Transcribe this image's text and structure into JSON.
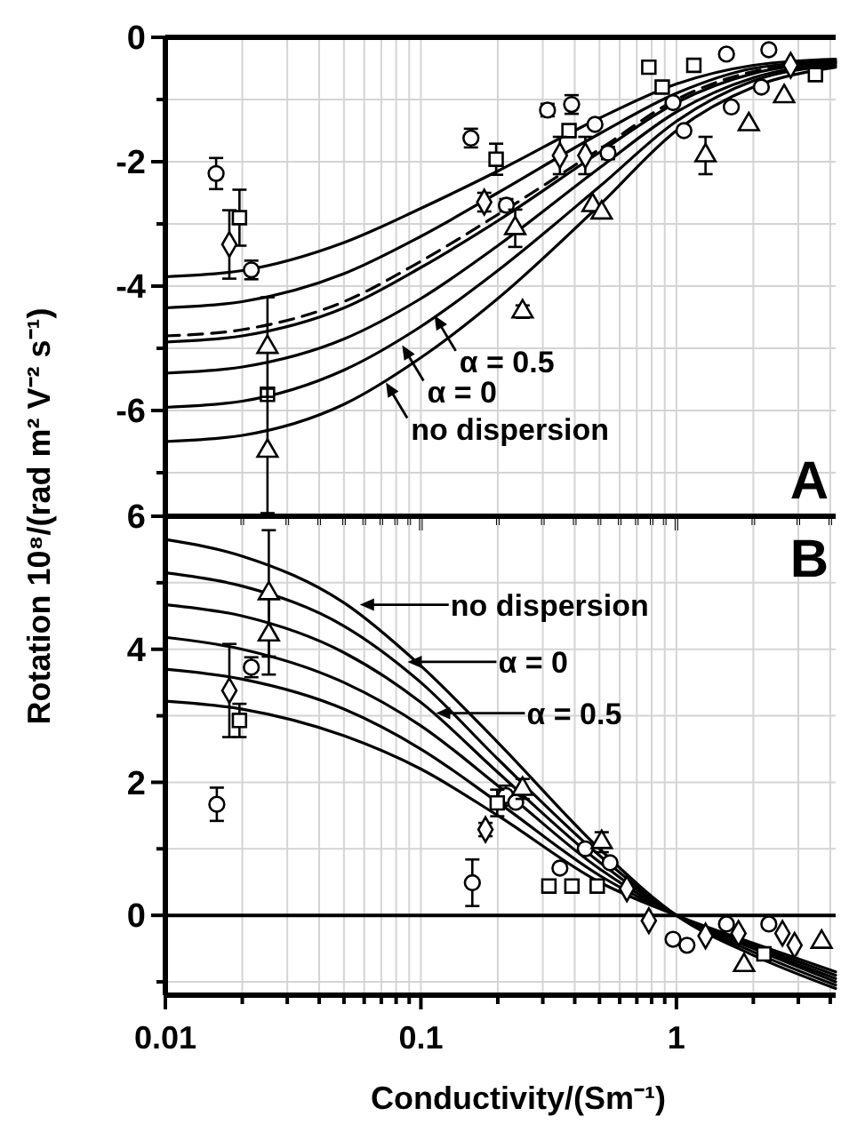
{
  "chart_data": [
    {
      "type": "line",
      "ylabel": "Rotation 10⁸/(rad m² V⁻² s⁻¹)",
      "annotations": [
        "A",
        {
          "text": "α = 0.5",
          "x": 0.113,
          "y": -4.47
        },
        {
          "text": "α = 0",
          "x": 0.0845,
          "y": -4.95
        },
        {
          "text": "no dispersion",
          "x": 0.073,
          "y": -5.55
        }
      ],
      "log": "x",
      "grid": true,
      "tick_labels": "y",
      "xlim": [
        0.01,
        4.2
      ],
      "ylim": [
        -7.7,
        0
      ],
      "xticks": [
        0.01,
        {
          "value": 0.02,
          "label": null
        },
        {
          "value": 0.03,
          "label": null
        },
        {
          "value": 0.04,
          "label": null
        },
        {
          "value": 0.05,
          "label": null
        },
        {
          "value": 0.06,
          "label": null
        },
        {
          "value": 0.07,
          "label": null
        },
        {
          "value": 0.08,
          "label": null
        },
        {
          "value": 0.09,
          "label": null
        },
        0.1,
        {
          "value": 0.2,
          "label": null
        },
        {
          "value": 0.3,
          "label": null
        },
        {
          "value": 0.4,
          "label": null
        },
        {
          "value": 0.5,
          "label": null
        },
        {
          "value": 0.6,
          "label": null
        },
        {
          "value": 0.7,
          "label": null
        },
        {
          "value": 0.8,
          "label": null
        },
        {
          "value": 0.9,
          "label": null
        },
        1,
        {
          "value": 2,
          "label": null
        },
        {
          "value": 3,
          "label": null
        },
        {
          "value": 4,
          "label": null
        }
      ],
      "yticks": [
        {
          "value": -7,
          "label": null
        },
        -6,
        {
          "value": -5,
          "label": null
        },
        -4,
        {
          "value": -3,
          "label": null
        },
        -2,
        {
          "value": -1,
          "label": null
        },
        0
      ],
      "x": [
        0.01,
        0.02,
        0.05,
        0.1,
        0.2,
        0.5,
        1,
        2,
        4.2
      ],
      "series": [
        {
          "color": "#000000",
          "values": [
            -3.85,
            -3.75,
            -3.3,
            -2.75,
            -2.15,
            -1.3,
            -0.75,
            -0.45,
            -0.35
          ]
        },
        {
          "color": "#000000",
          "values": [
            -4.35,
            -4.25,
            -3.8,
            -3.2,
            -2.5,
            -1.55,
            -0.9,
            -0.5,
            -0.38
          ]
        },
        {
          "color": "#000000",
          "line_style": "dashed",
          "values": [
            -4.8,
            -4.7,
            -4.25,
            -3.6,
            -2.85,
            -1.8,
            -1.0,
            -0.55,
            -0.4
          ]
        },
        {
          "color": "#000000",
          "values": [
            -4.9,
            -4.8,
            -4.35,
            -3.7,
            -2.95,
            -1.85,
            -1.05,
            -0.58,
            -0.4
          ]
        },
        {
          "color": "#000000",
          "values": [
            -5.4,
            -5.3,
            -4.85,
            -4.2,
            -3.35,
            -2.1,
            -1.2,
            -0.65,
            -0.42
          ]
        },
        {
          "color": "#000000",
          "values": [
            -5.95,
            -5.85,
            -5.35,
            -4.65,
            -3.75,
            -2.4,
            -1.35,
            -0.7,
            -0.45
          ]
        },
        {
          "color": "#000000",
          "values": [
            -6.5,
            -6.4,
            -5.9,
            -5.15,
            -4.2,
            -2.7,
            -1.5,
            -0.8,
            -0.48
          ]
        },
        {
          "type": "scatter",
          "marker": "circle",
          "color": "#000000",
          "x": [
            0.0158,
            0.0217,
            0.157,
            0.216,
            0.313,
            0.389,
            0.48,
            0.54,
            0.97,
            1.07,
            1.57,
            1.64,
            2.15,
            2.3
          ],
          "values": [
            -2.19,
            -3.74,
            -1.62,
            -2.7,
            -1.17,
            -1.08,
            -1.4,
            -1.86,
            -1.05,
            -1.5,
            -0.27,
            -1.12,
            -0.8,
            -0.2
          ],
          "errors": [
            0.25,
            0.15,
            0.15,
            0.1,
            0.1,
            0.15,
            null,
            0.1,
            null,
            null,
            null,
            null,
            null,
            null
          ]
        },
        {
          "type": "scatter",
          "marker": "square",
          "color": "#000000",
          "x": [
            0.0195,
            0.0251,
            0.197,
            0.38,
            0.78,
            0.88,
            1.17,
            3.5
          ],
          "values": [
            -2.9,
            -5.74,
            -1.96,
            -1.5,
            -0.48,
            -0.8,
            -0.45,
            -0.6
          ],
          "errors": [
            0.45,
            null,
            0.25,
            null,
            null,
            null,
            null,
            null
          ]
        },
        {
          "type": "scatter",
          "marker": "diamond",
          "color": "#000000",
          "x": [
            0.0178,
            0.177,
            0.35,
            0.44,
            2.8
          ],
          "values": [
            -3.33,
            -2.65,
            -1.9,
            -1.9,
            -0.45
          ],
          "errors": [
            0.55,
            0.15,
            0.3,
            0.3,
            null
          ]
        },
        {
          "type": "scatter",
          "marker": "triangle",
          "color": "#000000",
          "x": [
            0.0251,
            0.0251,
            0.234,
            0.25,
            0.47,
            0.51,
            1.3,
            1.92,
            2.64
          ],
          "values": [
            -4.98,
            -6.65,
            -3.07,
            -4.41,
            -2.7,
            -2.82,
            -1.9,
            -1.4,
            -0.95
          ],
          "errors": [
            0.8,
            1.0,
            0.3,
            0.1,
            null,
            null,
            0.3,
            null,
            null
          ]
        }
      ]
    },
    {
      "type": "line",
      "xlabel": "Conductivity/(Sm⁻¹)",
      "annotations": [
        "B",
        {
          "text": "no dispersion",
          "x": 0.0577,
          "y": 4.67
        },
        {
          "text": "α = 0",
          "x": 0.0887,
          "y": 3.81
        },
        {
          "text": "α = 0.5",
          "x": 0.1146,
          "y": 3.04
        }
      ],
      "log": "x",
      "grid": true,
      "xlim": [
        0.01,
        4.2
      ],
      "ylim": [
        -1.2,
        6
      ],
      "xticks": [
        0.01,
        {
          "value": 0.02,
          "label": null
        },
        {
          "value": 0.03,
          "label": null
        },
        {
          "value": 0.04,
          "label": null
        },
        {
          "value": 0.05,
          "label": null
        },
        {
          "value": 0.06,
          "label": null
        },
        {
          "value": 0.07,
          "label": null
        },
        {
          "value": 0.08,
          "label": null
        },
        {
          "value": 0.09,
          "label": null
        },
        0.1,
        {
          "value": 0.2,
          "label": null
        },
        {
          "value": 0.3,
          "label": null
        },
        {
          "value": 0.4,
          "label": null
        },
        {
          "value": 0.5,
          "label": null
        },
        {
          "value": 0.6,
          "label": null
        },
        {
          "value": 0.7,
          "label": null
        },
        {
          "value": 0.8,
          "label": null
        },
        {
          "value": 0.9,
          "label": null
        },
        1,
        {
          "value": 2,
          "label": null
        },
        {
          "value": 3,
          "label": null
        },
        {
          "value": 4,
          "label": null
        }
      ],
      "yticks": [
        {
          "value": -1,
          "label": null
        },
        0,
        {
          "value": 1,
          "label": null
        },
        2,
        {
          "value": 3,
          "label": null
        },
        4,
        {
          "value": 5,
          "label": null
        },
        6
      ],
      "ref_lines": [
        {
          "axis": "y",
          "value": 0,
          "color": "#000000"
        }
      ],
      "x": [
        0.01,
        0.02,
        0.05,
        0.1,
        0.2,
        0.5,
        1,
        2,
        4.2
      ],
      "series": [
        {
          "color": "#000000",
          "values": [
            5.65,
            5.4,
            4.7,
            3.75,
            2.6,
            1.0,
            0,
            -0.6,
            -1.1
          ]
        },
        {
          "color": "#000000",
          "values": [
            5.15,
            4.95,
            4.35,
            3.5,
            2.35,
            0.9,
            0,
            -0.55,
            -1.05
          ]
        },
        {
          "color": "#000000",
          "values": [
            4.67,
            4.5,
            3.95,
            3.2,
            2.15,
            0.8,
            0,
            -0.5,
            -1.0
          ]
        },
        {
          "color": "#000000",
          "values": [
            4.18,
            4.0,
            3.5,
            2.85,
            1.95,
            0.7,
            0,
            -0.48,
            -0.95
          ]
        },
        {
          "color": "#000000",
          "values": [
            3.7,
            3.55,
            3.1,
            2.5,
            1.7,
            0.6,
            0,
            -0.45,
            -0.9
          ]
        },
        {
          "color": "#000000",
          "values": [
            3.22,
            3.1,
            2.7,
            2.2,
            1.5,
            0.5,
            0,
            -0.42,
            -0.85
          ]
        },
        {
          "type": "scatter",
          "marker": "circle",
          "color": "#000000",
          "x": [
            0.0159,
            0.0217,
            0.159,
            0.215,
            0.235,
            0.35,
            0.44,
            0.55,
            0.97,
            1.1,
            1.57,
            2.3
          ],
          "values": [
            1.67,
            3.73,
            0.49,
            1.8,
            1.7,
            0.71,
            1.0,
            0.79,
            -0.36,
            -0.45,
            -0.13,
            -0.13
          ],
          "errors": [
            0.25,
            0.15,
            0.35,
            0.15,
            null,
            null,
            null,
            null,
            null,
            null,
            null,
            null
          ]
        },
        {
          "type": "scatter",
          "marker": "square",
          "color": "#000000",
          "x": [
            0.0195,
            0.199,
            0.317,
            0.39,
            0.49,
            2.2
          ],
          "values": [
            2.93,
            1.69,
            0.44,
            0.44,
            0.44,
            -0.58
          ],
          "errors": [
            0.25,
            0.2,
            null,
            null,
            null,
            null
          ]
        },
        {
          "type": "scatter",
          "marker": "diamond",
          "color": "#000000",
          "x": [
            0.0178,
            0.179,
            0.64,
            0.78,
            1.3,
            1.75,
            2.6,
            2.9
          ],
          "values": [
            3.38,
            1.29,
            0.4,
            -0.08,
            -0.31,
            -0.27,
            -0.27,
            -0.45
          ],
          "errors": [
            0.7,
            0.1,
            null,
            null,
            null,
            null,
            null,
            null
          ]
        },
        {
          "type": "scatter",
          "marker": "triangle",
          "color": "#000000",
          "x": [
            0.0254,
            0.0254,
            0.25,
            0.51,
            1.84,
            3.7
          ],
          "values": [
            4.22,
            4.84,
            1.9,
            1.1,
            -0.75,
            -0.4
          ],
          "errors": [
            0.6,
            0.95,
            0.15,
            0.15,
            null,
            null
          ]
        }
      ]
    }
  ]
}
